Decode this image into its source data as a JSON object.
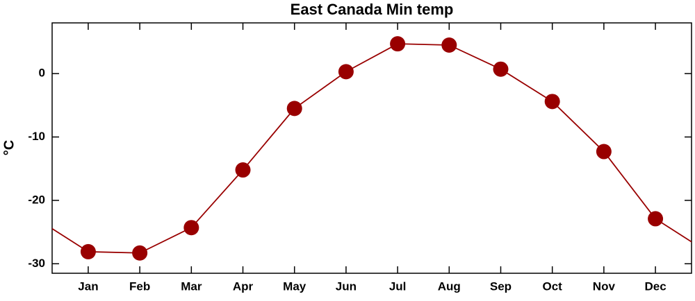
{
  "chart_data": {
    "type": "line",
    "title": "East Canada Min temp",
    "ylabel": "°C",
    "categories": [
      "Jan",
      "Feb",
      "Mar",
      "Apr",
      "May",
      "Jun",
      "Jul",
      "Aug",
      "Sep",
      "Oct",
      "Nov",
      "Dec"
    ],
    "values": [
      -28.1,
      -28.3,
      -24.3,
      -15.2,
      -5.5,
      0.3,
      4.7,
      4.5,
      0.7,
      -4.4,
      -12.3,
      -22.9
    ],
    "color": "#990000",
    "ylim": [
      -31.5,
      8
    ],
    "yticks": [
      -30,
      -20,
      -10,
      0
    ]
  }
}
